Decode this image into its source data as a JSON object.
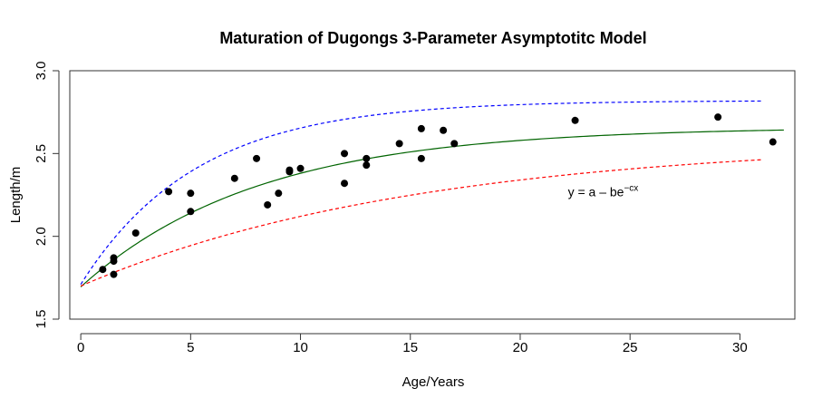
{
  "chart_data": {
    "type": "scatter",
    "title": "Maturation of Dugongs 3-Parameter Asymptotitc Model",
    "xlabel": "Age/Years",
    "ylabel": "Length/m",
    "xlim": [
      -0.5,
      32.5
    ],
    "ylim": [
      1.5,
      3.0
    ],
    "xticks": [
      0,
      5,
      10,
      15,
      20,
      25,
      30
    ],
    "yticks": [
      1.5,
      2.0,
      2.5,
      3.0
    ],
    "xtick_labels": [
      "0",
      "5",
      "10",
      "15",
      "20",
      "25",
      "30"
    ],
    "ytick_labels": [
      "1.5",
      "2.0",
      "2.5",
      "3.0"
    ],
    "grid": false,
    "points": {
      "color": "#000000",
      "x": [
        1.0,
        1.5,
        1.5,
        1.5,
        2.5,
        4.0,
        5.0,
        5.0,
        7.0,
        8.0,
        8.5,
        9.0,
        9.5,
        9.5,
        10.0,
        12.0,
        12.0,
        13.0,
        13.0,
        14.5,
        15.5,
        15.5,
        16.5,
        17.0,
        22.5,
        29.0,
        31.5
      ],
      "y": [
        1.8,
        1.85,
        1.87,
        1.77,
        2.02,
        2.27,
        2.15,
        2.26,
        2.35,
        2.47,
        2.19,
        2.26,
        2.4,
        2.39,
        2.41,
        2.5,
        2.32,
        2.43,
        2.47,
        2.56,
        2.65,
        2.47,
        2.64,
        2.56,
        2.7,
        2.72,
        2.57
      ]
    },
    "curves": [
      {
        "style": "solid",
        "color": "#006400",
        "model": "y = a - b*exp(-c*x)",
        "a": 2.66,
        "b": 0.965,
        "c": 0.124,
        "xrange": [
          0,
          32
        ]
      },
      {
        "style": "dashed",
        "color": "#0000ff",
        "model": "y = a - b*exp(-c*x)",
        "a": 2.82,
        "b": 1.11,
        "c": 0.19,
        "xrange": [
          0,
          31
        ]
      },
      {
        "style": "dashed",
        "color": "#ff0000",
        "model": "y = a - b*exp(-c*x)",
        "a": 2.58,
        "b": 0.88,
        "c": 0.065,
        "xrange": [
          0,
          31
        ]
      }
    ],
    "annotation": {
      "text_main": "y = a – be",
      "text_sup": "−cx",
      "x": 22.5,
      "y": 2.27
    }
  }
}
